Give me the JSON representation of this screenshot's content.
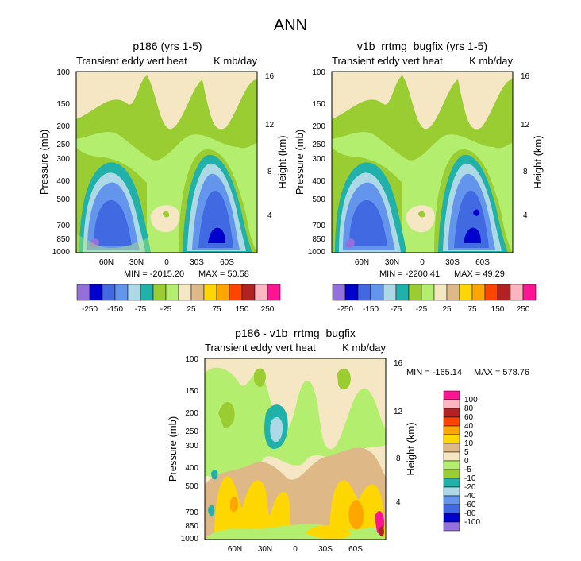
{
  "page_title": "ANN",
  "icons": {},
  "colors": {
    "abs_scale": [
      "#9370db",
      "#0000cd",
      "#4169e1",
      "#6495ed",
      "#add8e6",
      "#20b2aa",
      "#9acd32",
      "#b4ee6e",
      "#f5e6c4",
      "#deb887",
      "#ffd700",
      "#ffa500",
      "#ff4500",
      "#b22222",
      "#ffb6c1",
      "#ff1493"
    ],
    "diff_scale": [
      "#9370db",
      "#0000cd",
      "#4169e1",
      "#6495ed",
      "#add8e6",
      "#20b2aa",
      "#9acd32",
      "#b4ee6e",
      "#f5e6c4",
      "#deb887",
      "#ffd700",
      "#ffa500",
      "#ff4500",
      "#b22222",
      "#ffb6c1",
      "#ff1493"
    ],
    "background": "#f5e6c4"
  },
  "chart_data": [
    {
      "type": "heatmap",
      "title": "p186 (yrs 1-5)",
      "subtitle_left": "Transient eddy vert heat",
      "subtitle_right": "K mb/day",
      "ylabel": "Pressure (mb)",
      "ylabel_right": "Height (km)",
      "y_ticks": [
        "100",
        "150",
        "200",
        "250",
        "300",
        "400",
        "500",
        "700",
        "850",
        "1000"
      ],
      "y_right_ticks": [
        "16",
        "12",
        "8",
        "4"
      ],
      "x_ticks": [
        "60N",
        "30N",
        "0",
        "30S",
        "60S"
      ],
      "min_label": "MIN = -2015.20",
      "max_label": "MAX = 50.58",
      "colorbar_labels": [
        "-250",
        "-150",
        "-75",
        "-25",
        "25",
        "75",
        "150",
        "250"
      ]
    },
    {
      "type": "heatmap",
      "title": "v1b_rrtmg_bugfix (yrs 1-5)",
      "subtitle_left": "Transient eddy vert heat",
      "subtitle_right": "K mb/day",
      "ylabel": "Pressure (mb)",
      "ylabel_right": "Height (km)",
      "y_ticks": [
        "100",
        "150",
        "200",
        "250",
        "300",
        "400",
        "500",
        "700",
        "850",
        "1000"
      ],
      "y_right_ticks": [
        "16",
        "12",
        "8",
        "4"
      ],
      "x_ticks": [
        "60N",
        "30N",
        "0",
        "30S",
        "60S"
      ],
      "min_label": "MIN = -2200.41",
      "max_label": "MAX = 49.29",
      "colorbar_labels": [
        "-250",
        "-150",
        "-75",
        "-25",
        "25",
        "75",
        "150",
        "250"
      ]
    },
    {
      "type": "heatmap",
      "title": "p186 - v1b_rrtmg_bugfix",
      "subtitle_left": "Transient eddy vert heat",
      "subtitle_right": "K mb/day",
      "ylabel": "Pressure (mb)",
      "ylabel_right": "Height (km)",
      "y_ticks": [
        "100",
        "150",
        "200",
        "250",
        "300",
        "400",
        "500",
        "700",
        "850",
        "1000"
      ],
      "y_right_ticks": [
        "16",
        "12",
        "8",
        "4"
      ],
      "x_ticks": [
        "60N",
        "30N",
        "0",
        "30S",
        "60S"
      ],
      "min_label": "MIN = -165.14",
      "max_label": "MAX = 578.76",
      "colorbar_labels": [
        "100",
        "80",
        "60",
        "40",
        "20",
        "10",
        "5",
        "0",
        "-5",
        "-10",
        "-20",
        "-40",
        "-60",
        "-80",
        "-100"
      ]
    }
  ]
}
